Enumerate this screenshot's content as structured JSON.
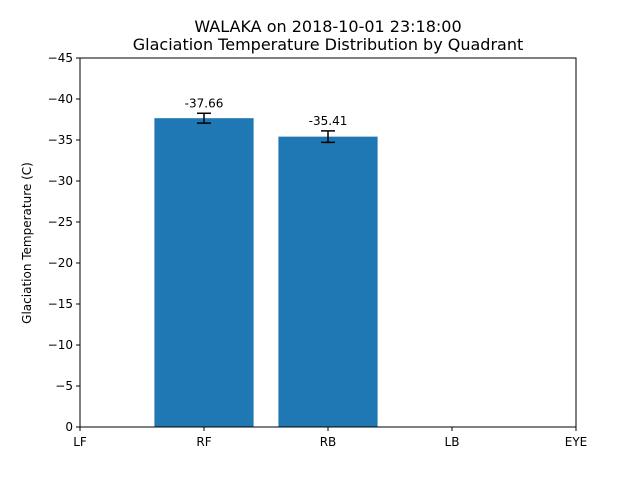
{
  "chart_data": {
    "type": "bar",
    "title": "WALAKA on 2018-10-01 23:18:00",
    "subtitle": "Glaciation Temperature Distribution by Quadrant",
    "xlabel": "",
    "ylabel": "Glaciation Temperature (C)",
    "categories": [
      "LF",
      "RF",
      "RB",
      "LB",
      "EYE"
    ],
    "x_ticks": [
      0,
      1,
      2,
      3,
      4
    ],
    "x_tick_labels": [
      "LF",
      "RF",
      "RB",
      "LB",
      "EYE"
    ],
    "xlim": [
      0,
      4
    ],
    "bars": [
      {
        "x": 1,
        "value": -37.66,
        "label": "-37.66",
        "error": 0.6
      },
      {
        "x": 2,
        "value": -35.41,
        "label": "-35.41",
        "error": 0.7
      }
    ],
    "ylim": [
      0,
      -45
    ],
    "y_ticks": [
      0,
      -5,
      -10,
      -15,
      -20,
      -25,
      -30,
      -35,
      -40,
      -45
    ],
    "y_tick_labels": [
      "0",
      "−5",
      "−10",
      "−15",
      "−20",
      "−25",
      "−30",
      "−35",
      "−40",
      "−45"
    ],
    "bar_color": "#1f77b4",
    "grid": false
  }
}
